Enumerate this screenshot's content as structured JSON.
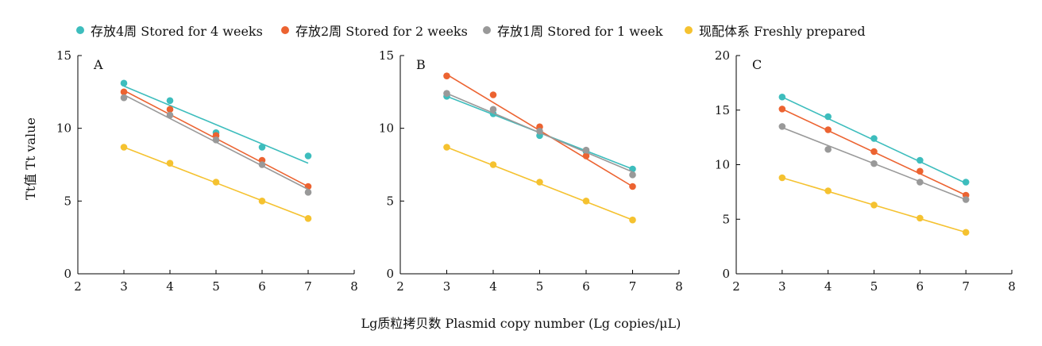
{
  "legend": [
    {
      "label": "存放4周 Stored for 4 weeks",
      "color": "#3dbdbd"
    },
    {
      "label": "存放2周 Stored for 2 weeks",
      "color": "#ec6331"
    },
    {
      "label": "存放1周 Stored for 1 week",
      "color": "#999999"
    },
    {
      "label": "现配体系 Freshly prepared",
      "color": "#f5c230"
    }
  ],
  "ylabel": "Tt值 Tt value",
  "xlabel": "Lg质粒拷贝数 Plasmid copy number (Lg copies/μL)",
  "chart_data": [
    {
      "type": "scatter",
      "panel_label": "A",
      "xlim": [
        2,
        8
      ],
      "ylim": [
        0,
        15
      ],
      "xticks": [
        2,
        3,
        4,
        5,
        6,
        7,
        8
      ],
      "yticks": [
        0,
        5,
        10,
        15
      ],
      "grid": false,
      "x": [
        3,
        4,
        5,
        6,
        7
      ],
      "series": [
        {
          "name": "存放4周 Stored for 4 weeks",
          "color": "#3dbdbd",
          "values": [
            13.1,
            11.9,
            9.7,
            8.7,
            8.1
          ],
          "fit": [
            12.9,
            7.6
          ]
        },
        {
          "name": "存放2周 Stored for 2 weeks",
          "color": "#ec6331",
          "values": [
            12.5,
            11.3,
            9.5,
            7.8,
            6.0
          ],
          "fit": [
            12.6,
            6.0
          ]
        },
        {
          "name": "存放1周 Stored for 1 week",
          "color": "#999999",
          "values": [
            12.1,
            10.9,
            9.2,
            7.5,
            5.6
          ],
          "fit": [
            12.3,
            5.8
          ]
        },
        {
          "name": "现配体系 Freshly prepared",
          "color": "#f5c230",
          "values": [
            8.7,
            7.6,
            6.3,
            5.0,
            3.8
          ],
          "fit": [
            8.7,
            3.8
          ]
        }
      ]
    },
    {
      "type": "scatter",
      "panel_label": "B",
      "xlim": [
        2,
        8
      ],
      "ylim": [
        0,
        15
      ],
      "xticks": [
        2,
        3,
        4,
        5,
        6,
        7,
        8
      ],
      "yticks": [
        0,
        5,
        10,
        15
      ],
      "grid": false,
      "x": [
        3,
        4,
        5,
        6,
        7
      ],
      "series": [
        {
          "name": "存放4周 Stored for 4 weeks",
          "color": "#3dbdbd",
          "values": [
            12.2,
            11.0,
            9.5,
            8.4,
            7.2
          ],
          "fit": [
            12.2,
            7.2
          ]
        },
        {
          "name": "存放2周 Stored for 2 weeks",
          "color": "#ec6331",
          "values": [
            13.6,
            12.3,
            10.1,
            8.1,
            6.0
          ],
          "fit": [
            13.7,
            6.0
          ]
        },
        {
          "name": "存放1周 Stored for 1 week",
          "color": "#999999",
          "values": [
            12.4,
            11.3,
            9.8,
            8.5,
            6.8
          ],
          "fit": [
            12.4,
            7.0
          ]
        },
        {
          "name": "现配体系 Freshly prepared",
          "color": "#f5c230",
          "values": [
            8.7,
            7.5,
            6.3,
            5.0,
            3.7
          ],
          "fit": [
            8.7,
            3.7
          ]
        }
      ]
    },
    {
      "type": "scatter",
      "panel_label": "C",
      "xlim": [
        2,
        8
      ],
      "ylim": [
        0,
        20
      ],
      "xticks": [
        2,
        3,
        4,
        5,
        6,
        7,
        8
      ],
      "yticks": [
        0,
        5,
        10,
        15,
        20
      ],
      "grid": false,
      "x": [
        3,
        4,
        5,
        6,
        7
      ],
      "series": [
        {
          "name": "存放4周 Stored for 4 weeks",
          "color": "#3dbdbd",
          "values": [
            16.2,
            14.4,
            12.4,
            10.4,
            8.4
          ],
          "fit": [
            16.2,
            8.3
          ]
        },
        {
          "name": "存放2周 Stored for 2 weeks",
          "color": "#ec6331",
          "values": [
            15.1,
            13.2,
            11.2,
            9.4,
            7.2
          ],
          "fit": [
            15.1,
            7.2
          ]
        },
        {
          "name": "存放1周 Stored for 1 week",
          "color": "#999999",
          "values": [
            13.5,
            11.4,
            10.1,
            8.4,
            6.8
          ],
          "fit": [
            13.4,
            6.8
          ]
        },
        {
          "name": "现配体系 Freshly prepared",
          "color": "#f5c230",
          "values": [
            8.8,
            7.6,
            6.3,
            5.1,
            3.8
          ],
          "fit": [
            8.8,
            3.8
          ]
        }
      ]
    }
  ]
}
